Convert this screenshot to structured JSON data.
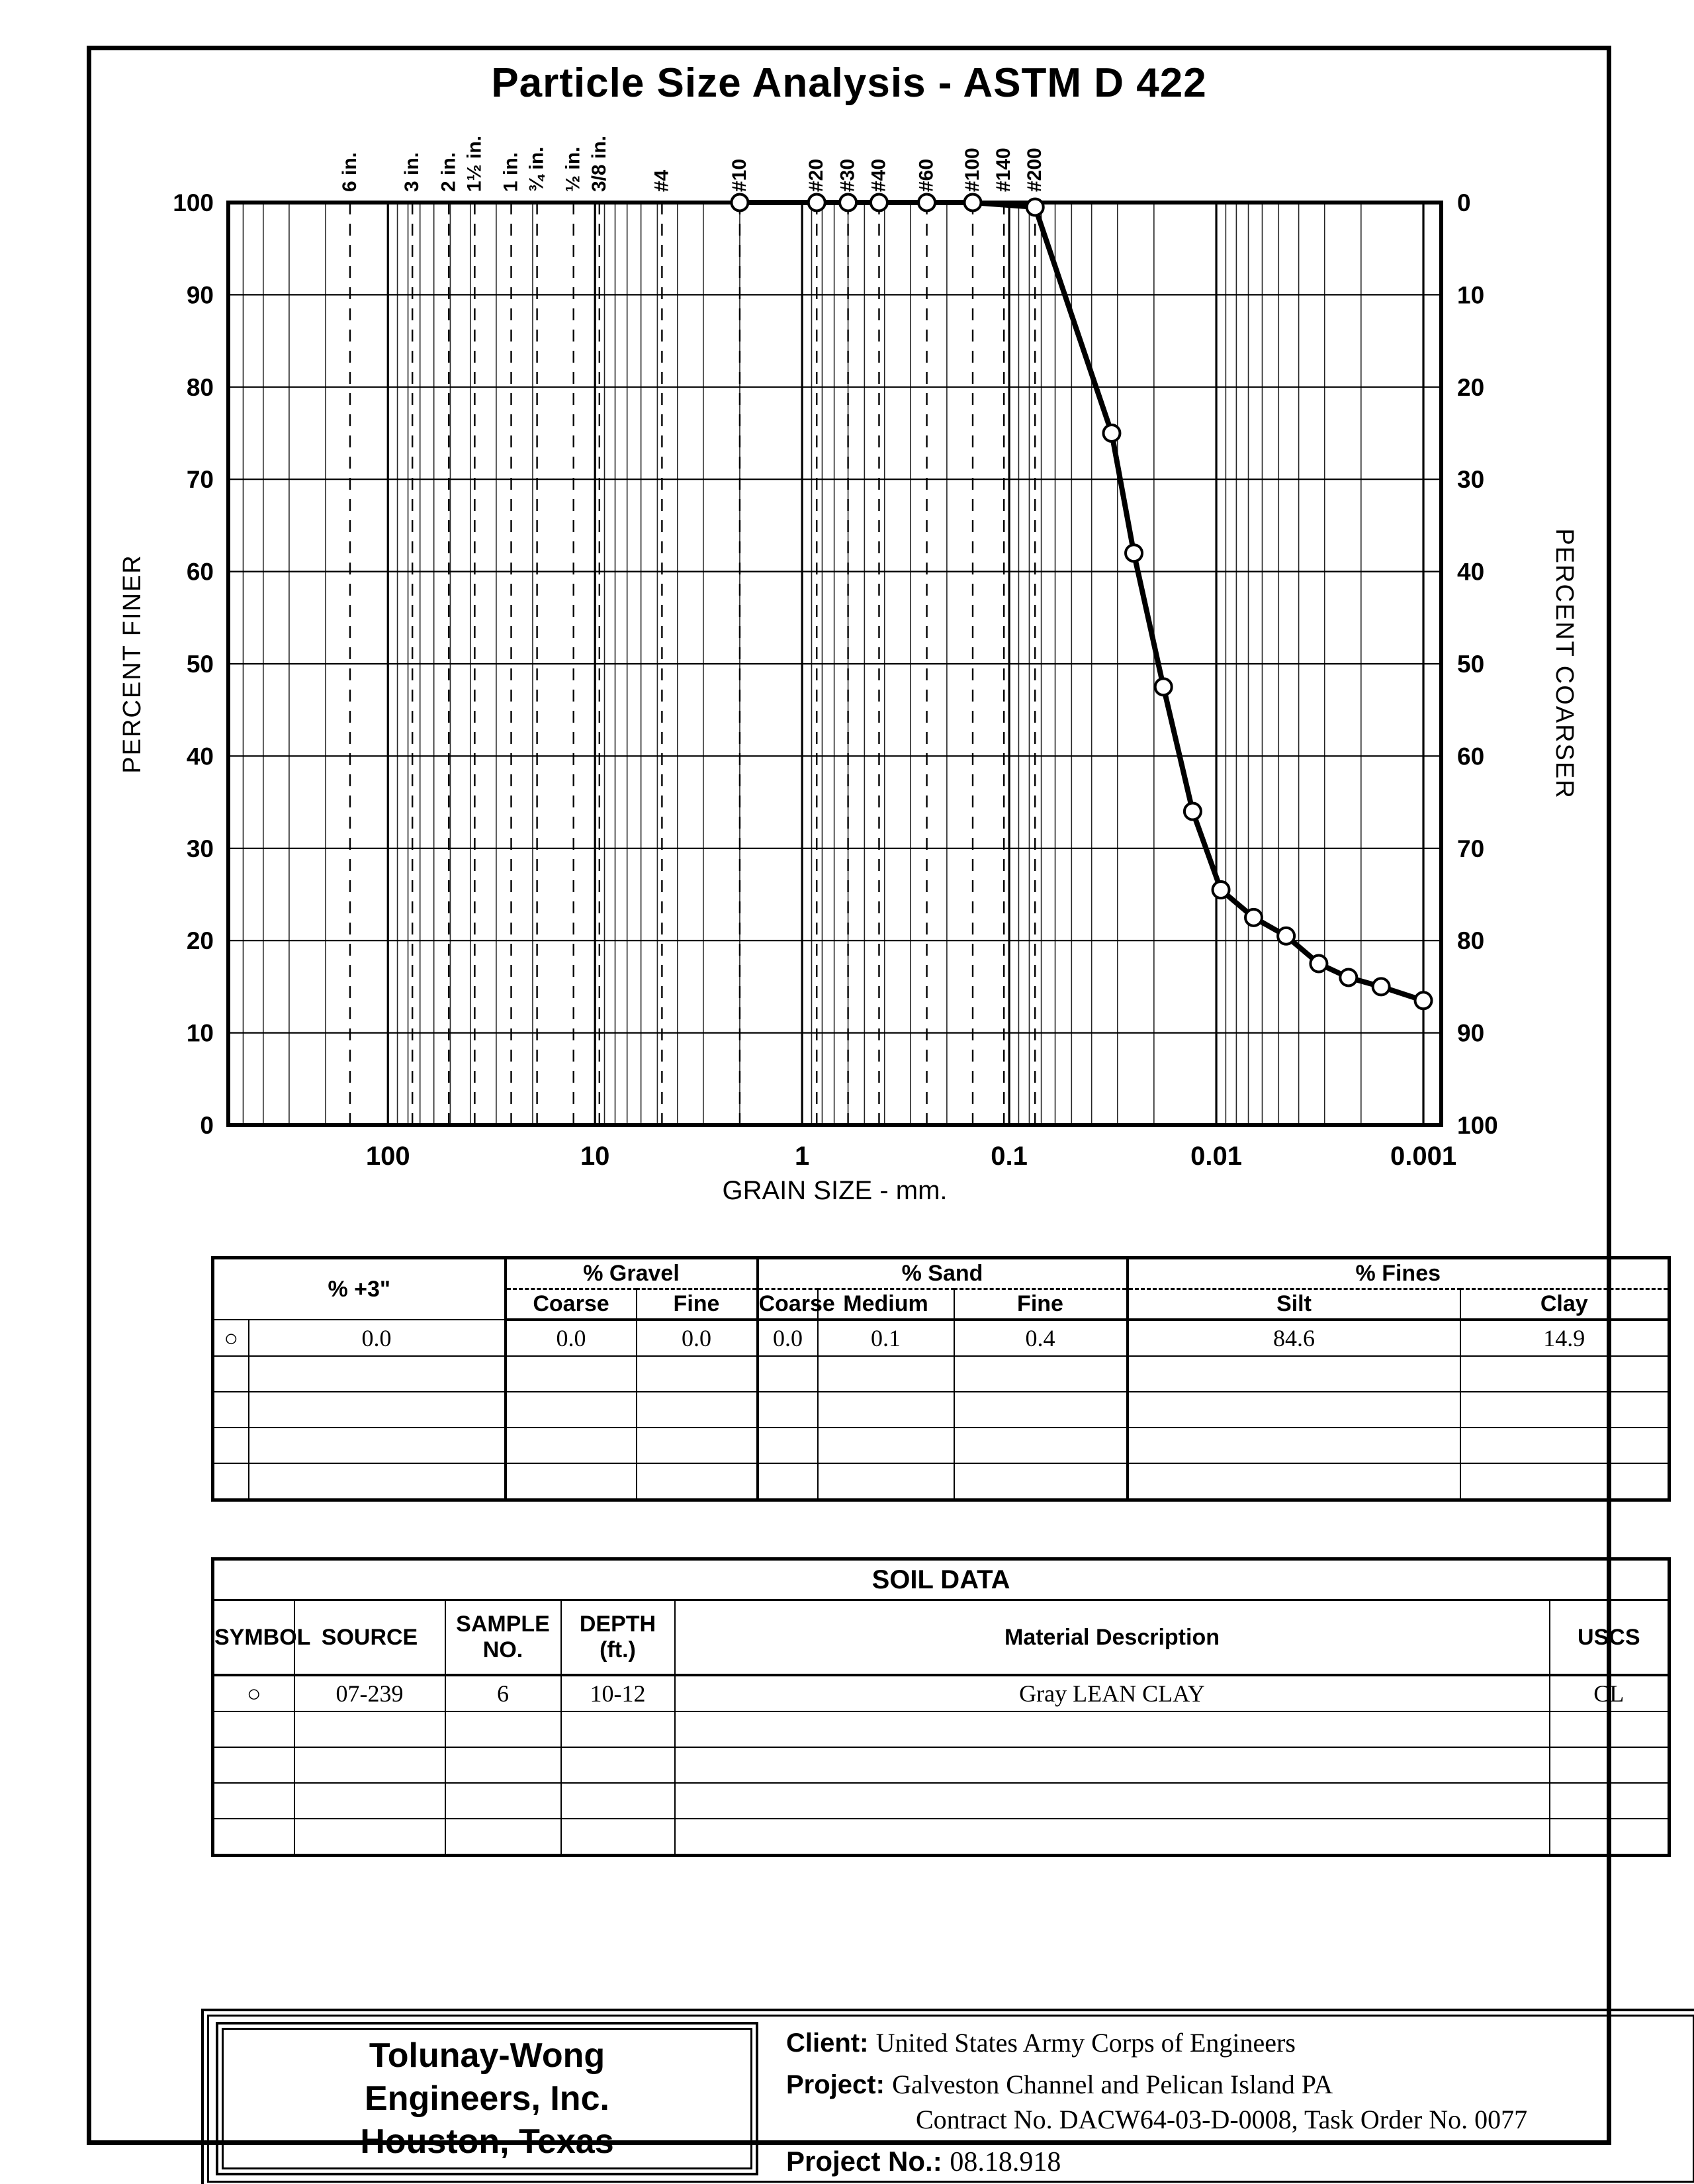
{
  "chart_data": {
    "type": "line",
    "title": "Particle Size Analysis - ASTM D 422",
    "xlabel": "GRAIN SIZE - mm.",
    "ylabel_left": "PERCENT FINER",
    "ylabel_right": "PERCENT COARSER",
    "x_scale": "log",
    "x_tick_labels": [
      "100",
      "10",
      "1",
      "0.1",
      "0.01",
      "0.001"
    ],
    "x_tick_values": [
      100,
      10,
      1,
      0.1,
      0.01,
      0.001
    ],
    "x_range": [
      590,
      0.00082
    ],
    "y_range": [
      0,
      100
    ],
    "y_ticks_left": [
      100,
      90,
      80,
      70,
      60,
      50,
      40,
      30,
      20,
      10,
      0
    ],
    "y_ticks_right": [
      0,
      10,
      20,
      30,
      40,
      50,
      60,
      70,
      80,
      90,
      100
    ],
    "grid": "log-minor-on",
    "legend_position": "none",
    "sieves": [
      {
        "label": "6 in.",
        "mm": 152.4
      },
      {
        "label": "3 in.",
        "mm": 76.2
      },
      {
        "label": "2 in.",
        "mm": 50.8
      },
      {
        "label": "1½ in.",
        "mm": 38.1
      },
      {
        "label": "1 in.",
        "mm": 25.4
      },
      {
        "label": "¾ in.",
        "mm": 19.05
      },
      {
        "label": "½ in.",
        "mm": 12.7
      },
      {
        "label": "3/8 in.",
        "mm": 9.525
      },
      {
        "label": "#4",
        "mm": 4.75
      },
      {
        "label": "#10",
        "mm": 2.0
      },
      {
        "label": "#20",
        "mm": 0.85
      },
      {
        "label": "#30",
        "mm": 0.6
      },
      {
        "label": "#40",
        "mm": 0.425
      },
      {
        "label": "#60",
        "mm": 0.25
      },
      {
        "label": "#100",
        "mm": 0.15
      },
      {
        "label": "#140",
        "mm": 0.106
      },
      {
        "label": "#200",
        "mm": 0.075
      }
    ],
    "series": [
      {
        "name": "07-239 Sample 6 (Gray LEAN CLAY)",
        "marker": "open-circle",
        "color": "#000000",
        "points_mm_percentfiner": [
          [
            2.0,
            100
          ],
          [
            0.85,
            100
          ],
          [
            0.6,
            100
          ],
          [
            0.425,
            100
          ],
          [
            0.25,
            100
          ],
          [
            0.15,
            100
          ],
          [
            0.075,
            99.5
          ],
          [
            0.032,
            75
          ],
          [
            0.025,
            62
          ],
          [
            0.018,
            47.5
          ],
          [
            0.013,
            34
          ],
          [
            0.0095,
            25.5
          ],
          [
            0.0066,
            22.5
          ],
          [
            0.0046,
            20.5
          ],
          [
            0.0032,
            17.5
          ],
          [
            0.0023,
            16
          ],
          [
            0.0016,
            15
          ],
          [
            0.001,
            13.5
          ]
        ]
      }
    ]
  },
  "fractions": {
    "plus3_label": "% +3\"",
    "gravel_label": "% Gravel",
    "sand_label": "% Sand",
    "fines_label": "% Fines",
    "sub": [
      "Coarse",
      "Fine",
      "Coarse",
      "Medium",
      "Fine",
      "Silt",
      "Clay"
    ],
    "rows": [
      [
        "○",
        "0.0",
        "0.0",
        "0.0",
        "0.0",
        "0.1",
        "0.4",
        "84.6",
        "14.9"
      ]
    ],
    "empty_rows": 4
  },
  "soil": {
    "title": "SOIL DATA",
    "headers": [
      "SYMBOL",
      "SOURCE",
      "SAMPLE\nNO.",
      "DEPTH\n(ft.)",
      "Material Description",
      "USCS"
    ],
    "rows": [
      [
        "○",
        "07-239",
        "6",
        "10-12",
        "Gray LEAN CLAY",
        "CL"
      ]
    ],
    "empty_rows": 4
  },
  "footer": {
    "company_line1": "Tolunay-Wong",
    "company_line2": "Engineers, Inc.",
    "company_line3": "Houston, Texas",
    "client_label": "Client:",
    "client": "United States Army Corps of Engineers",
    "project_label": "Project:",
    "project_line1": "Galveston Channel and Pelican Island PA",
    "project_line2": "Contract No. DACW64-03-D-0008, Task Order No. 0077",
    "project_no_label": "Project No.:",
    "project_no": "08.18.918"
  },
  "colors": {
    "ink": "#000000",
    "paper": "#ffffff"
  }
}
